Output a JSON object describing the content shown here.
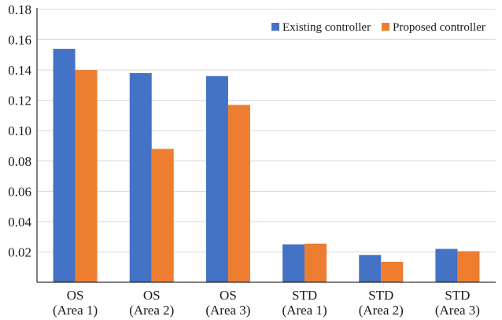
{
  "chart_data": {
    "type": "bar",
    "categories": [
      [
        "OS",
        "(Area 1)"
      ],
      [
        "OS",
        "(Area 2)"
      ],
      [
        "OS",
        "(Area 3)"
      ],
      [
        "STD",
        "(Area 1)"
      ],
      [
        "STD",
        "(Area 2)"
      ],
      [
        "STD",
        "(Area 3)"
      ]
    ],
    "series": [
      {
        "name": "Existing controller",
        "color": "#4472C4",
        "values": [
          0.154,
          0.138,
          0.136,
          0.025,
          0.018,
          0.022
        ]
      },
      {
        "name": "Proposed controller",
        "color": "#ED7D31",
        "values": [
          0.14,
          0.088,
          0.117,
          0.0255,
          0.0135,
          0.0205
        ]
      }
    ],
    "ylim": [
      0,
      0.18
    ],
    "yticks": [
      "0.02",
      "0.04",
      "0.06",
      "0.08",
      "0.10",
      "0.12",
      "0.14",
      "0.16",
      "0.18"
    ],
    "ytick_values": [
      0.02,
      0.04,
      0.06,
      0.08,
      0.1,
      0.12,
      0.14,
      0.16,
      0.18
    ],
    "grid": true,
    "legend_position": "top-right",
    "title": "",
    "xlabel": "",
    "ylabel": ""
  }
}
